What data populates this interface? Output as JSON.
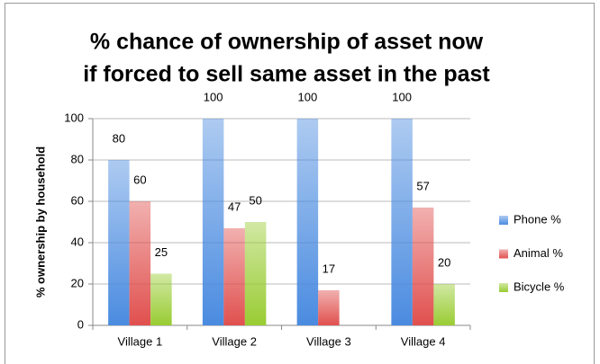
{
  "chart_data": {
    "type": "bar",
    "title": "% chance of ownership of asset now",
    "subtitle": "if forced to sell same asset in the past",
    "ylabel": "% ownership by household",
    "categories": [
      "Village 1",
      "Village 2",
      "Village 3",
      "Village 4"
    ],
    "series": [
      {
        "name": "Phone %",
        "color": "#4a8be0",
        "values": [
          80,
          100,
          100,
          100
        ]
      },
      {
        "name": "Animal %",
        "color": "#e0504e",
        "values": [
          60,
          47,
          17,
          57
        ]
      },
      {
        "name": "Bicycle %",
        "color": "#99cc33",
        "values": [
          25,
          50,
          null,
          20
        ]
      }
    ],
    "ylim": [
      0,
      100
    ],
    "yticks": [
      0,
      20,
      40,
      60,
      80,
      100
    ],
    "grid": true,
    "legend": "right"
  }
}
